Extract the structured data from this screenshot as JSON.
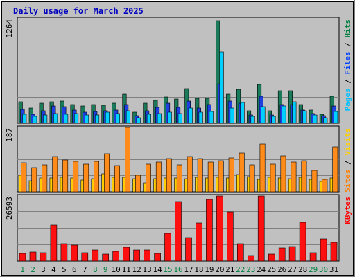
{
  "chart_data": {
    "type": "bar",
    "title": "Daily usage for March 2025",
    "days": [
      "1",
      "2",
      "3",
      "4",
      "5",
      "6",
      "7",
      "8",
      "9",
      "10",
      "11",
      "12",
      "13",
      "14",
      "15",
      "16",
      "17",
      "18",
      "19",
      "20",
      "21",
      "22",
      "23",
      "24",
      "25",
      "26",
      "27",
      "28",
      "29",
      "30",
      "31"
    ],
    "weekend_days": [
      "1",
      "2",
      "8",
      "9",
      "15",
      "16",
      "22",
      "23",
      "29",
      "30"
    ],
    "panels": [
      {
        "id": "hits-files-pages",
        "ymax_label": "1264",
        "ymax": 1264,
        "legend": [
          {
            "text": "Pages",
            "color": "#00c0ff"
          },
          {
            "text": " / ",
            "color": "#000000"
          },
          {
            "text": "Files",
            "color": "#0040ff"
          },
          {
            "text": " / ",
            "color": "#000000"
          },
          {
            "text": "Hits",
            "color": "#008040"
          }
        ],
        "series": [
          {
            "name": "Hits",
            "color": "#1a7a5a",
            "values": [
              260,
              180,
              240,
              260,
              270,
              230,
              210,
              230,
              220,
              240,
              350,
              130,
              240,
              280,
              320,
              290,
              420,
              300,
              300,
              1240,
              350,
              410,
              150,
              470,
              150,
              390,
              390,
              230,
              160,
              110,
              330
            ]
          },
          {
            "name": "Files",
            "color": "#1e40e0",
            "values": [
              170,
              110,
              150,
              210,
              200,
              160,
              130,
              140,
              150,
              160,
              230,
              90,
              150,
              190,
              240,
              190,
              270,
              180,
              230,
              480,
              270,
              240,
              100,
              330,
              100,
              230,
              230,
              160,
              120,
              90,
              210
            ]
          },
          {
            "name": "Pages",
            "color": "#00d0ff",
            "values": [
              110,
              80,
              100,
              120,
              110,
              120,
              100,
              100,
              130,
              120,
              150,
              70,
              110,
              120,
              130,
              120,
              180,
              130,
              140,
              860,
              180,
              250,
              80,
              200,
              80,
              210,
              260,
              150,
              100,
              70,
              140
            ]
          }
        ]
      },
      {
        "id": "visits-sites",
        "ymax_label": "187",
        "ymax": 187,
        "legend": [
          {
            "text": "Sites",
            "color": "#ff8000"
          },
          {
            "text": " / ",
            "color": "#000000"
          },
          {
            "text": "Visits",
            "color": "#ffd000"
          }
        ],
        "series": [
          {
            "name": "Visits",
            "color": "#ffcc00",
            "values": [
              48,
              32,
              40,
              40,
              42,
              40,
              34,
              38,
              52,
              42,
              42,
              38,
              26,
              38,
              40,
              40,
              38,
              42,
              40,
              42,
              40,
              50,
              44,
              36,
              42,
              40,
              38,
              42,
              36,
              30,
              40
            ]
          },
          {
            "name": "Sites",
            "color": "#ff8c1a",
            "values": [
              85,
              70,
              78,
              102,
              92,
              88,
              80,
              88,
              110,
              76,
              187,
              48,
              80,
              86,
              96,
              78,
              102,
              96,
              86,
              90,
              98,
              112,
              78,
              138,
              80,
              105,
              86,
              90,
              62,
              36,
              130
            ]
          }
        ]
      },
      {
        "id": "kbytes",
        "ymax_label": "26593",
        "ymax": 26593,
        "legend": [
          {
            "text": "KBytes",
            "color": "#ff0000"
          }
        ],
        "series": [
          {
            "name": "KBytes",
            "color": "#ff1010",
            "values": [
              3200,
              3800,
              3400,
              14800,
              7200,
              6500,
              3400,
              4400,
              2800,
              3900,
              5600,
              4500,
              4600,
              3200,
              11200,
              24200,
              9500,
              15700,
              25200,
              26593,
              20000,
              7200,
              2200,
              26593,
              2800,
              5400,
              6000,
              15800,
              3500,
              9100,
              7600
            ]
          }
        ]
      }
    ]
  }
}
